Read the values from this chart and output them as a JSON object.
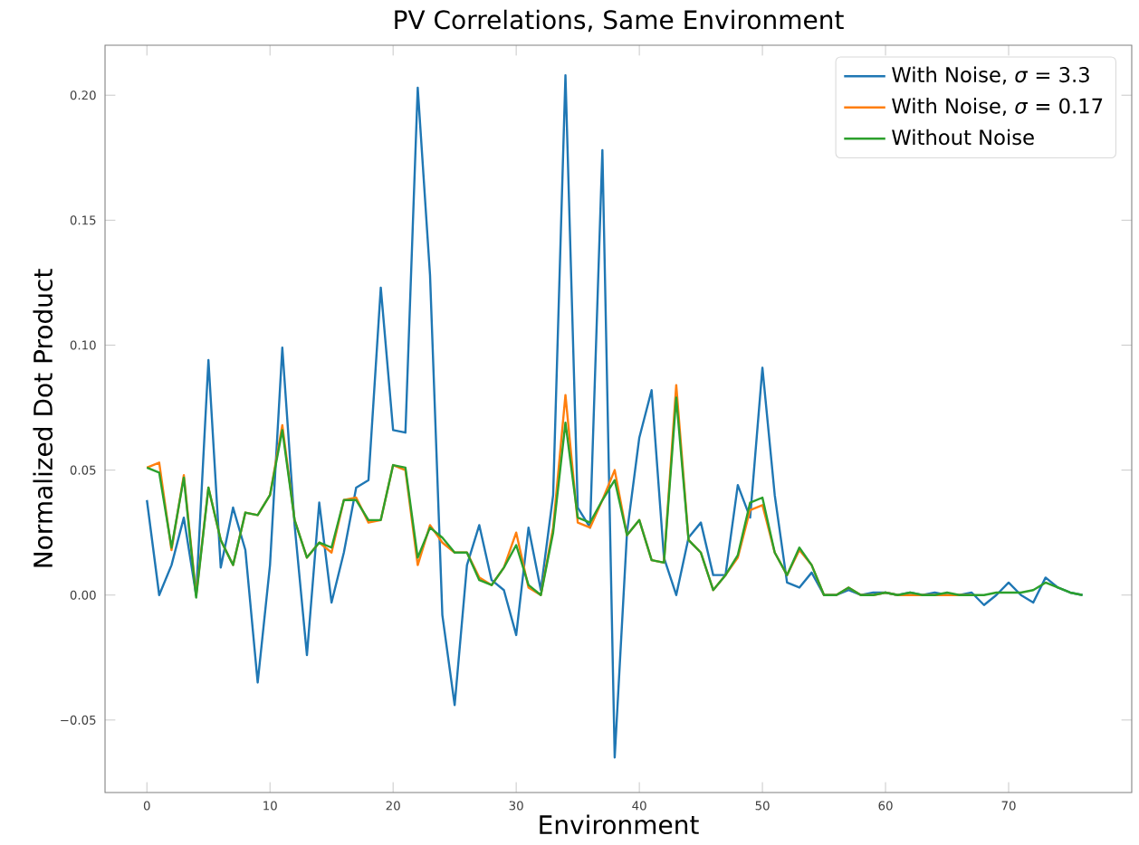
{
  "chart_data": {
    "type": "line",
    "title": "PV Correlations, Same Environment",
    "xlabel": "Environment",
    "ylabel": "Normalized Dot Product",
    "x": [
      0,
      1,
      2,
      3,
      4,
      5,
      6,
      7,
      8,
      9,
      10,
      11,
      12,
      13,
      14,
      15,
      16,
      17,
      18,
      19,
      20,
      21,
      22,
      23,
      24,
      25,
      26,
      27,
      28,
      29,
      30,
      31,
      32,
      33,
      34,
      35,
      36,
      37,
      38,
      39,
      40,
      41,
      42,
      43,
      44,
      45,
      46,
      47,
      48,
      49,
      50,
      51,
      52,
      53,
      54,
      55,
      56,
      57,
      58,
      59,
      60,
      61,
      62,
      63,
      64,
      65,
      66,
      67,
      68,
      69,
      70,
      71,
      72,
      73,
      74,
      75,
      76
    ],
    "series": [
      {
        "name": "With Noise, *σ* = 3.3",
        "color": "#1f77b4",
        "values": [
          0.038,
          0.0,
          0.012,
          0.031,
          0.0,
          0.094,
          0.011,
          0.035,
          0.018,
          -0.035,
          0.012,
          0.099,
          0.028,
          -0.024,
          0.037,
          -0.003,
          0.017,
          0.043,
          0.046,
          0.123,
          0.066,
          0.065,
          0.203,
          0.128,
          -0.008,
          -0.044,
          0.012,
          0.028,
          0.006,
          0.002,
          -0.016,
          0.027,
          0.002,
          0.04,
          0.208,
          0.035,
          0.027,
          0.178,
          -0.065,
          0.025,
          0.063,
          0.082,
          0.015,
          0.0,
          0.023,
          0.029,
          0.008,
          0.008,
          0.044,
          0.031,
          0.091,
          0.04,
          0.005,
          0.003,
          0.009,
          0.0,
          0.0,
          0.002,
          0.0,
          0.001,
          0.001,
          0.0,
          0.001,
          0.0,
          0.001,
          0.0,
          0.0,
          0.001,
          -0.004,
          0.0,
          0.005,
          0.0,
          -0.003,
          0.007,
          0.003,
          0.001,
          0.0
        ]
      },
      {
        "name": "With Noise, *σ* = 0.17",
        "color": "#ff7f0e",
        "values": [
          0.051,
          0.053,
          0.018,
          0.048,
          0.0,
          0.043,
          0.022,
          0.012,
          0.033,
          0.032,
          0.04,
          0.068,
          0.03,
          0.015,
          0.021,
          0.017,
          0.038,
          0.039,
          0.029,
          0.03,
          0.052,
          0.05,
          0.012,
          0.028,
          0.021,
          0.017,
          0.017,
          0.007,
          0.004,
          0.011,
          0.025,
          0.003,
          0.0,
          0.027,
          0.08,
          0.029,
          0.027,
          0.038,
          0.05,
          0.024,
          0.03,
          0.014,
          0.013,
          0.084,
          0.022,
          0.017,
          0.002,
          0.008,
          0.015,
          0.034,
          0.036,
          0.017,
          0.008,
          0.018,
          0.012,
          0.0,
          0.0,
          0.003,
          0.0,
          0.0,
          0.001,
          0.0,
          0.0,
          0.0,
          0.0,
          0.0,
          0.0,
          0.0,
          null,
          null,
          null,
          null,
          null,
          null,
          null,
          null,
          null
        ]
      },
      {
        "name": "Without Noise",
        "color": "#2ca02c",
        "values": [
          0.051,
          0.049,
          0.019,
          0.047,
          -0.001,
          0.043,
          0.022,
          0.012,
          0.033,
          0.032,
          0.04,
          0.066,
          0.03,
          0.015,
          0.021,
          0.019,
          0.038,
          0.038,
          0.03,
          0.03,
          0.052,
          0.051,
          0.015,
          0.027,
          0.023,
          0.017,
          0.017,
          0.006,
          0.004,
          0.011,
          0.02,
          0.004,
          0.0,
          0.025,
          0.069,
          0.031,
          0.029,
          0.038,
          0.046,
          0.024,
          0.03,
          0.014,
          0.013,
          0.079,
          0.022,
          0.017,
          0.002,
          0.008,
          0.016,
          0.037,
          0.039,
          0.017,
          0.008,
          0.019,
          0.012,
          0.0,
          0.0,
          0.003,
          0.0,
          0.0,
          0.001,
          0.0,
          0.001,
          0.0,
          0.0,
          0.001,
          0.0,
          0.0,
          0.0,
          0.001,
          0.001,
          0.001,
          0.002,
          0.005,
          0.003,
          0.001,
          0.0
        ]
      }
    ],
    "xlim": [
      -3.4,
      80
    ],
    "ylim": [
      -0.079,
      0.22
    ],
    "xticks": [
      0,
      10,
      20,
      30,
      40,
      50,
      60,
      70
    ],
    "yticks": [
      {
        "value": -0.05,
        "label": "−0.05"
      },
      {
        "value": 0,
        "label": "0.00"
      },
      {
        "value": 0.05,
        "label": "0.05"
      },
      {
        "value": 0.1,
        "label": "0.10"
      },
      {
        "value": 0.15,
        "label": "0.15"
      },
      {
        "value": 0.2,
        "label": "0.20"
      }
    ],
    "legend": "top right",
    "line_style": "solid"
  }
}
